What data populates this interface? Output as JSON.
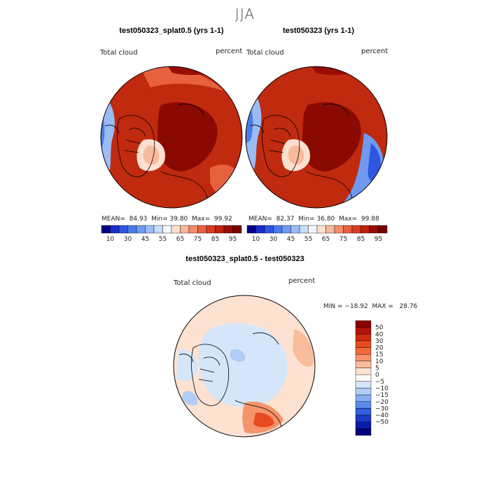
{
  "page": {
    "season_title": "JJA"
  },
  "chart_data": [
    {
      "type": "heatmap",
      "projection": "north polar stereographic",
      "title": "test050323_splat0.5 (yrs 1-1)",
      "variable_label": "Total cloud",
      "units_label": "percent",
      "stats": {
        "mean": "84.93",
        "min": "39.80",
        "max": "99.92"
      },
      "stats_text": {
        "mean_label": "MEAN=",
        "min_label": "Min=",
        "max_label": "Max="
      },
      "colorbar": {
        "levels": [
          10,
          20,
          30,
          40,
          45,
          50,
          55,
          60,
          65,
          70,
          75,
          80,
          85,
          90,
          95
        ],
        "tick_labels": [
          "10",
          "30",
          "45",
          "55",
          "65",
          "75",
          "85",
          "95"
        ],
        "colors": [
          "#00008b",
          "#1a2ccc",
          "#2e56e0",
          "#4a7be8",
          "#6f9af0",
          "#9abcf5",
          "#c6dcfa",
          "#f2f6ff",
          "#fde0cf",
          "#f8b99c",
          "#f28c6c",
          "#e8613f",
          "#d73c1f",
          "#c0200e",
          "#980e04",
          "#7a0000"
        ]
      }
    },
    {
      "type": "heatmap",
      "projection": "north polar stereographic",
      "title": "test050323 (yrs 1-1)",
      "variable_label": "Total cloud",
      "units_label": "percent",
      "stats": {
        "mean": "82.37",
        "min": "36.80",
        "max": "99.88"
      },
      "stats_text": {
        "mean_label": "MEAN=",
        "min_label": "Min=",
        "max_label": "Max="
      },
      "colorbar": {
        "levels": [
          10,
          20,
          30,
          40,
          45,
          50,
          55,
          60,
          65,
          70,
          75,
          80,
          85,
          90,
          95
        ],
        "tick_labels": [
          "10",
          "30",
          "45",
          "55",
          "65",
          "75",
          "85",
          "95"
        ],
        "colors": [
          "#00008b",
          "#1a2ccc",
          "#2e56e0",
          "#4a7be8",
          "#6f9af0",
          "#9abcf5",
          "#c6dcfa",
          "#f2f6ff",
          "#fde0cf",
          "#f8b99c",
          "#f28c6c",
          "#e8613f",
          "#d73c1f",
          "#c0200e",
          "#980e04",
          "#7a0000"
        ]
      }
    },
    {
      "type": "heatmap",
      "projection": "north polar stereographic",
      "title": "test050323_splat0.5 - test050323",
      "variable_label": "Total cloud",
      "units_label": "percent",
      "stats_line": "MIN = −18.92  MAX =   28.76",
      "colorbar": {
        "levels": [
          50,
          40,
          30,
          20,
          15,
          10,
          5,
          0,
          -5,
          -10,
          -15,
          -20,
          -30,
          -40,
          -50
        ],
        "tick_labels": [
          "50",
          "40",
          "30",
          "20",
          "15",
          "10",
          "5",
          "0",
          "−5",
          "−10",
          "−15",
          "−20",
          "−30",
          "−40",
          "−50"
        ],
        "colors": [
          "#8b0000",
          "#b0120a",
          "#d02a10",
          "#e84a20",
          "#f06a3c",
          "#f5946a",
          "#f9bc9c",
          "#fde2d2",
          "#ffffff",
          "#d6e6fa",
          "#b0cdf5",
          "#86aef0",
          "#5a89e8",
          "#3060dc",
          "#1a3ac8",
          "#0a1aa8",
          "#000080"
        ]
      }
    }
  ]
}
